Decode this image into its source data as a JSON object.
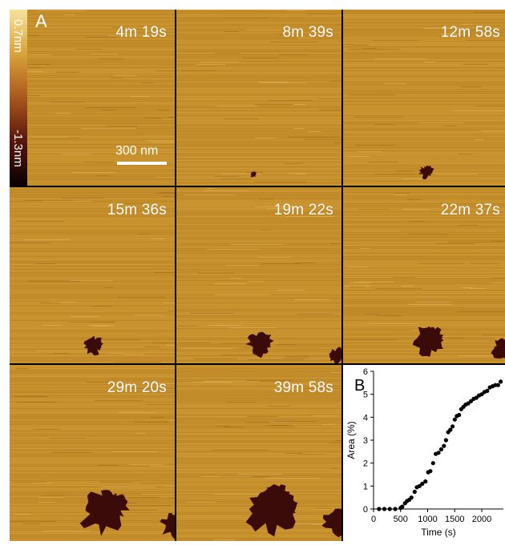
{
  "panel_a": {
    "letter": "A",
    "colorbar": {
      "top_label": "0.7nm",
      "bottom_label": "-1.3nm"
    },
    "scalebar_label": "300 nm",
    "frames": [
      {
        "time": "4m 19s"
      },
      {
        "time": "8m 39s"
      },
      {
        "time": "12m 58s"
      },
      {
        "time": "15m 36s"
      },
      {
        "time": "19m 22s"
      },
      {
        "time": "22m 37s"
      },
      {
        "time": "29m 20s"
      },
      {
        "time": "39m 58s"
      }
    ],
    "colors": {
      "surface": "#c58f2b",
      "domain": "#3a0b08",
      "grid": "#000000"
    }
  },
  "panel_b_letter": "B",
  "chart_data": {
    "type": "scatter",
    "title": "",
    "xlabel": "Time (s)",
    "ylabel": "Area (%)",
    "xlim": [
      0,
      2400
    ],
    "ylim": [
      0,
      6
    ],
    "xticks": [
      0,
      500,
      1000,
      1500,
      2000
    ],
    "yticks": [
      0,
      1,
      2,
      3,
      4,
      5,
      6
    ],
    "grid": false,
    "series": [
      {
        "marker_color": "#000000",
        "x": [
          100,
          200,
          300,
          400,
          500,
          530,
          580,
          620,
          660,
          700,
          760,
          800,
          850,
          900,
          960,
          1010,
          1050,
          1100,
          1150,
          1200,
          1250,
          1300,
          1340,
          1380,
          1420,
          1460,
          1500,
          1540,
          1580,
          1620,
          1660,
          1700,
          1750,
          1800,
          1850,
          1900,
          1950,
          2000,
          2050,
          2100,
          2150,
          2200,
          2250,
          2300,
          2350
        ],
        "y": [
          0.0,
          0.0,
          0.0,
          0.0,
          0.05,
          0.1,
          0.25,
          0.35,
          0.4,
          0.5,
          0.75,
          0.95,
          1.0,
          1.1,
          1.2,
          1.6,
          1.65,
          2.0,
          2.4,
          2.45,
          2.6,
          2.75,
          3.0,
          3.35,
          3.45,
          3.6,
          3.9,
          4.05,
          4.1,
          4.35,
          4.45,
          4.55,
          4.6,
          4.7,
          4.8,
          4.85,
          4.95,
          5.0,
          5.1,
          5.15,
          5.3,
          5.35,
          5.4,
          5.4,
          5.55
        ]
      }
    ]
  }
}
